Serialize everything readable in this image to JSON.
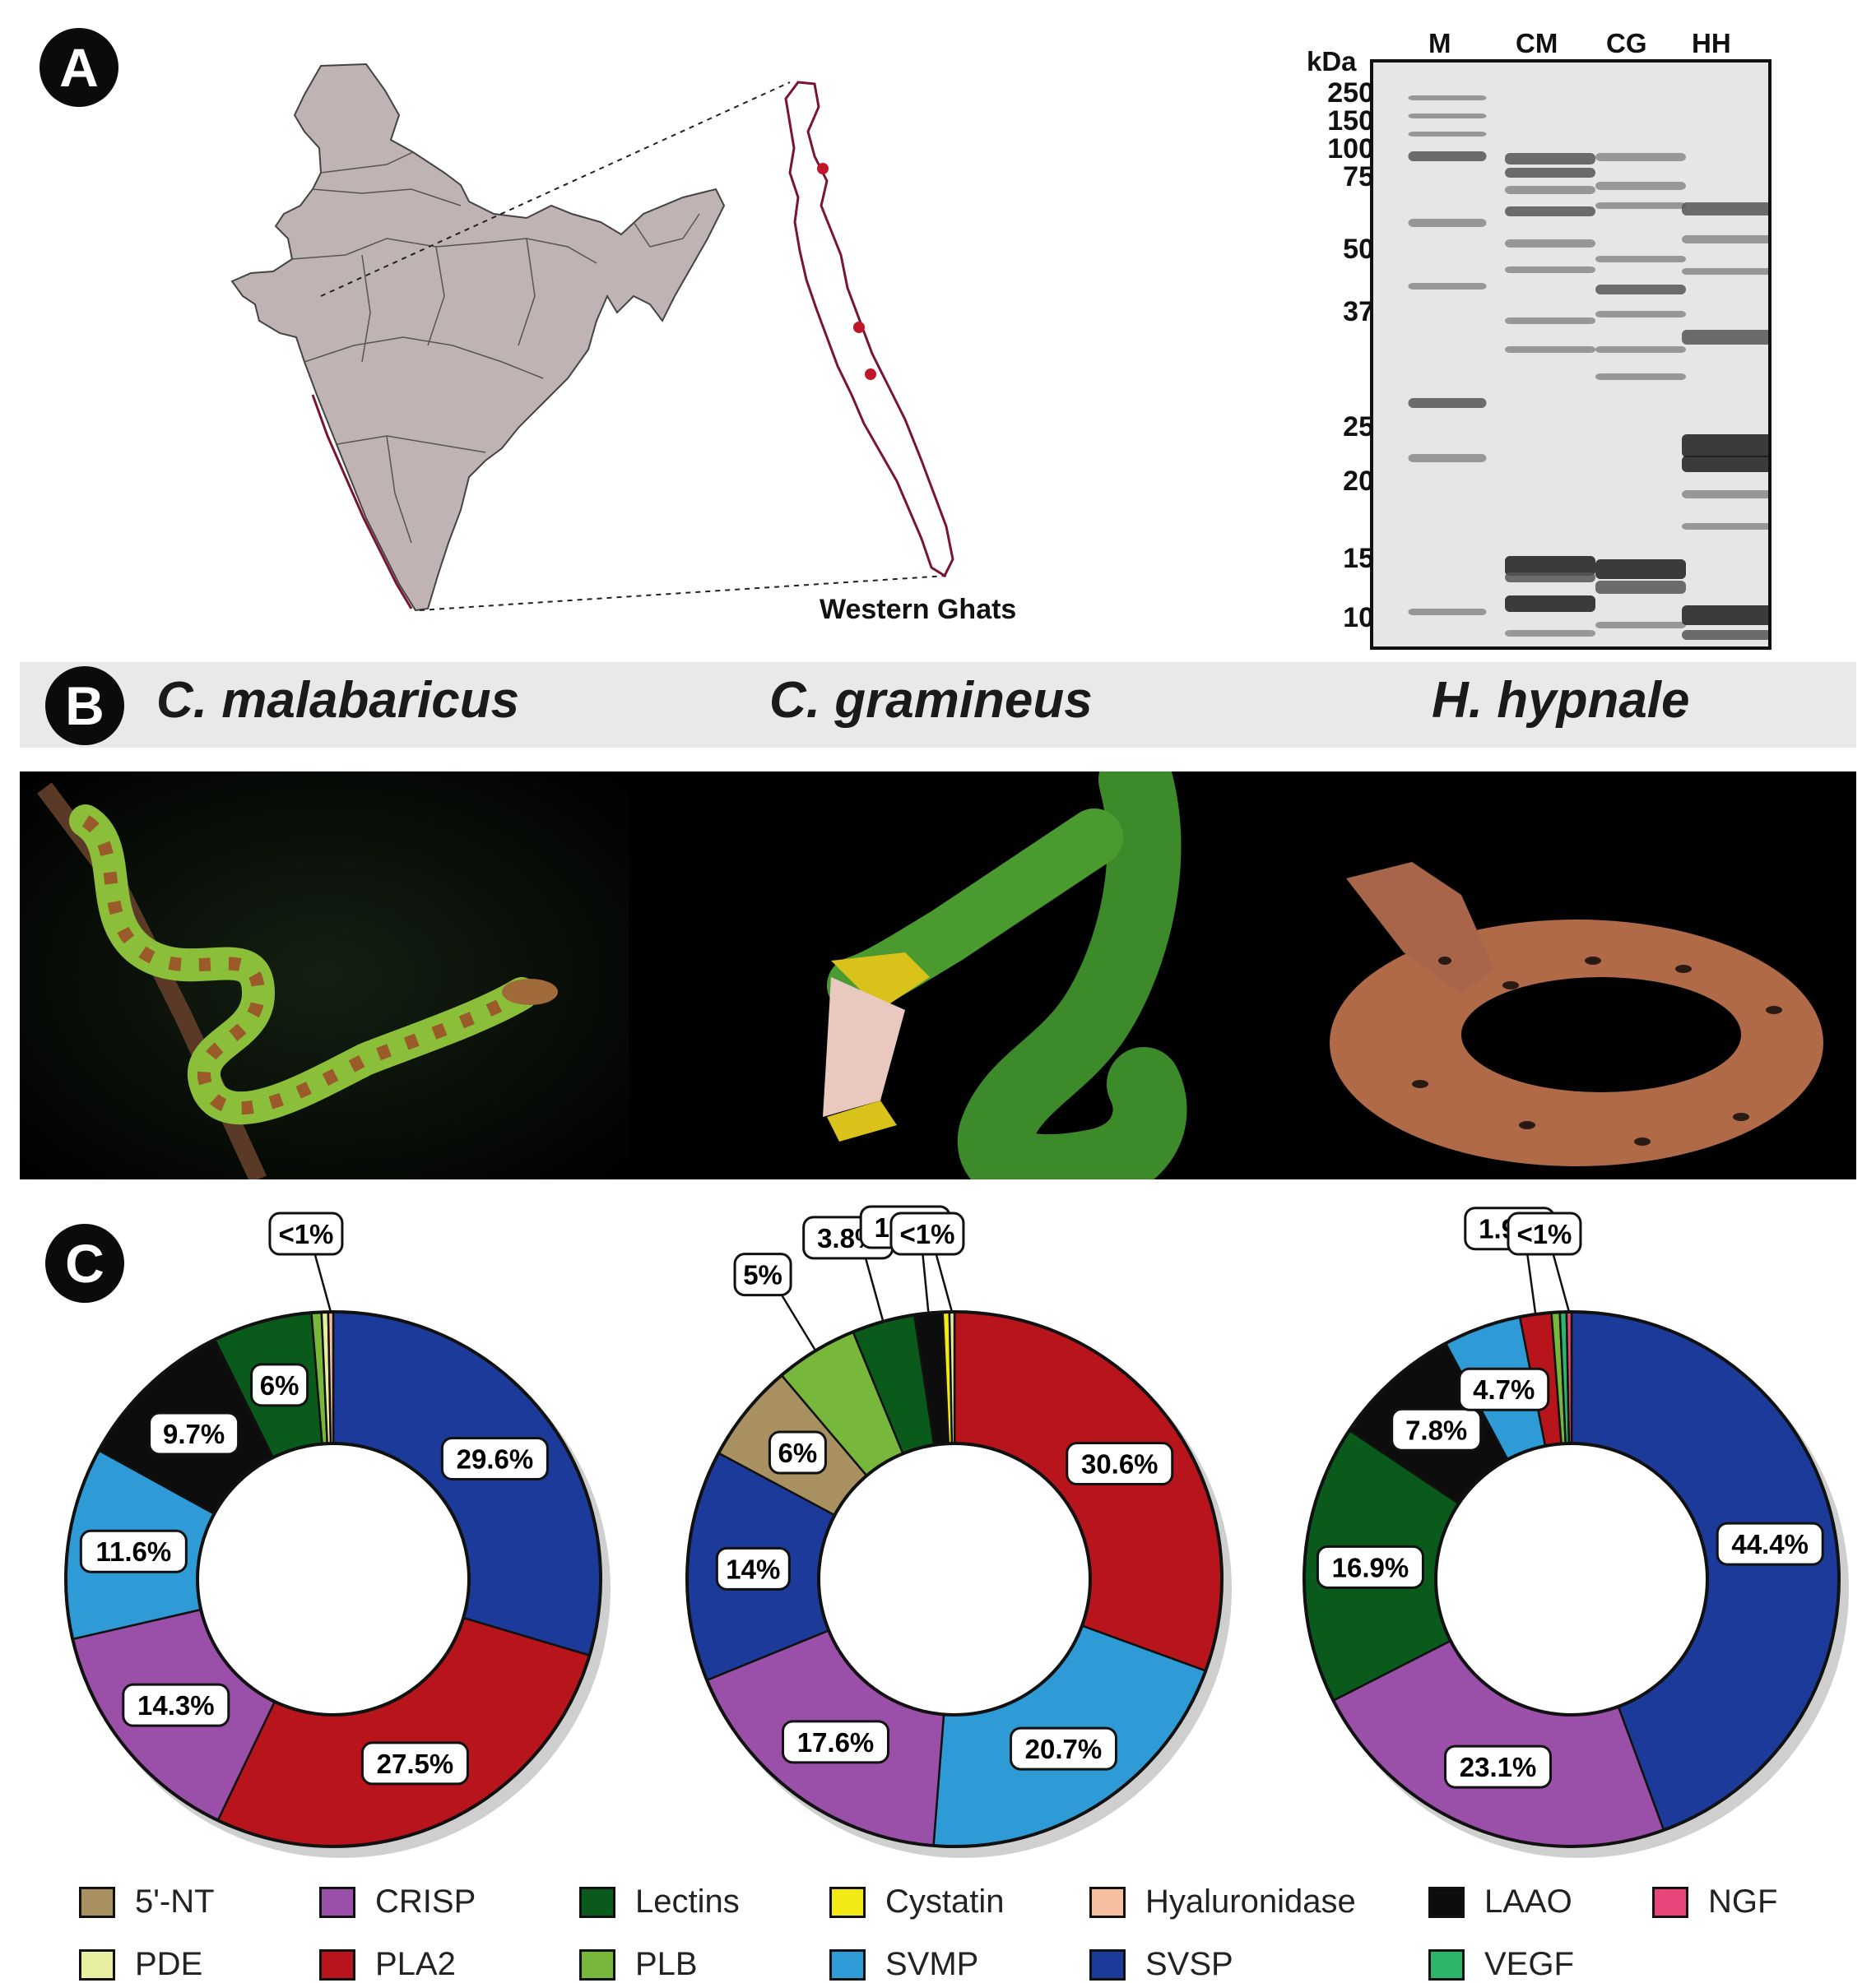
{
  "panels": {
    "a": "A",
    "b": "B",
    "c": "C"
  },
  "map": {
    "caption": "Western Ghats",
    "fill_color": "#bfb3b3",
    "ghats_color": "#7a1530",
    "site_color": "#c0162a"
  },
  "gel": {
    "unit": "kDa",
    "lanes": [
      "M",
      "CM",
      "CG",
      "HH"
    ],
    "markers": [
      "250",
      "150",
      "100",
      "75",
      "50",
      "37",
      "25",
      "20",
      "15",
      "10"
    ]
  },
  "species": [
    "C. malabaricus",
    "C. gramineus",
    "H. hypnale"
  ],
  "legend": [
    {
      "name": "5'-NT",
      "color": "#a89060"
    },
    {
      "name": "CRISP",
      "color": "#9a4fa8"
    },
    {
      "name": "Lectins",
      "color": "#0a5a1c"
    },
    {
      "name": "Cystatin",
      "color": "#f2ea12"
    },
    {
      "name": "Hyaluronidase",
      "color": "#f6bfa0"
    },
    {
      "name": "LAAO",
      "color": "#0d0d0d"
    },
    {
      "name": "NGF",
      "color": "#e8457a"
    },
    {
      "name": "PDE",
      "color": "#e8eea0"
    },
    {
      "name": "PLA2",
      "color": "#b8141c"
    },
    {
      "name": "PLB",
      "color": "#77b83c"
    },
    {
      "name": "SVMP",
      "color": "#2e9bd6"
    },
    {
      "name": "SVSP",
      "color": "#1c3a9a"
    },
    {
      "name": "VEGF",
      "color": "#2db56a"
    }
  ],
  "chart_data": [
    {
      "type": "pie",
      "donut": true,
      "title": "",
      "categories": [
        "SVSP",
        "PLA2",
        "CRISP",
        "SVMP",
        "LAAO",
        "Lectins",
        "PLB",
        "PDE",
        "Hyaluronidase"
      ],
      "values": [
        29.6,
        27.5,
        14.3,
        11.6,
        9.7,
        6.0,
        0.6,
        0.4,
        0.3
      ],
      "labels": [
        "29.6%",
        "27.5%",
        "14.3%",
        "11.6%",
        "9.7%",
        "6%",
        "<1%"
      ]
    },
    {
      "type": "pie",
      "donut": true,
      "title": "",
      "categories": [
        "PLA2",
        "SVMP",
        "CRISP",
        "SVSP",
        "5'-NT",
        "PLB",
        "Lectins",
        "LAAO",
        "Cystatin",
        "PDE"
      ],
      "values": [
        30.6,
        20.7,
        17.6,
        14.0,
        6.0,
        5.0,
        3.8,
        1.7,
        0.4,
        0.3
      ],
      "labels": [
        "30.6%",
        "20.7%",
        "17.6%",
        "14%",
        "6%",
        "5%",
        "3.8%",
        "1.7%",
        "<1%"
      ]
    },
    {
      "type": "pie",
      "donut": true,
      "title": "",
      "categories": [
        "SVSP",
        "CRISP",
        "Lectins",
        "LAAO",
        "SVMP",
        "PLA2",
        "PLB",
        "VEGF",
        "NGF"
      ],
      "values": [
        44.4,
        23.1,
        16.9,
        7.8,
        4.7,
        1.9,
        0.5,
        0.4,
        0.3
      ],
      "labels": [
        "44.4%",
        "23.1%",
        "16.9%",
        "7.8%",
        "4.7%",
        "1.9%",
        "<1%"
      ]
    }
  ]
}
